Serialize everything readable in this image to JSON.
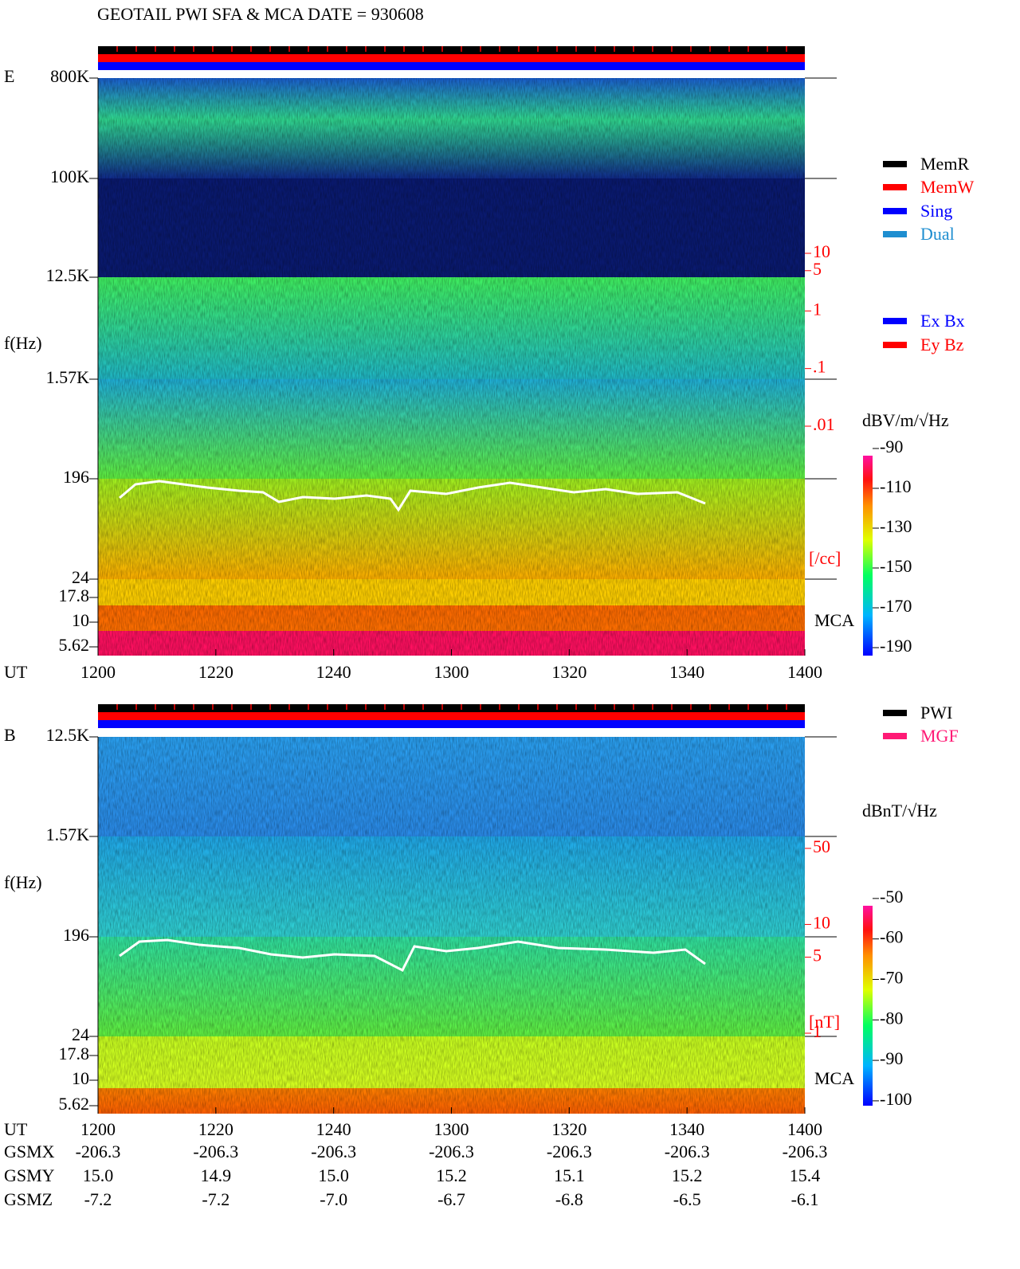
{
  "title": "GEOTAIL  PWI SFA & MCA   DATE = 930608",
  "panels": [
    {
      "component": "E",
      "y_label": "f(Hz)",
      "freq_ticks": [
        "800K",
        "100K",
        "12.5K",
        "1.57K",
        "196",
        "24",
        "17.8",
        "10",
        "5.62"
      ],
      "time_label": "UT",
      "time_ticks": [
        "1200",
        "1220",
        "1240",
        "1300",
        "1320",
        "1340",
        "1400"
      ],
      "density_scale": {
        "ticks": [
          10,
          5,
          1,
          {
            "value": 0.1,
            "label": ".1"
          },
          {
            "value": 0.01,
            "label": ".01"
          }
        ],
        "ylim": [
          0.01,
          10
        ],
        "log": true,
        "unit": "[/cc]",
        "color": "#ff0000"
      },
      "mca_label": "MCA",
      "colorbar": {
        "unit": "dBV/m/√Hz",
        "ticks": [
          -90,
          -110,
          -130,
          -150,
          -170,
          -190
        ],
        "clim": [
          -194,
          -93.6
        ]
      },
      "legend": [
        {
          "name": "MemR",
          "color": "#000000"
        },
        {
          "name": "MemW",
          "color": "#ff0000"
        },
        {
          "name": "Sing",
          "color": "#0000ff"
        },
        {
          "name": "Dual",
          "color": "#1e8ed0"
        }
      ],
      "legend2": [
        {
          "name": "Ex Bx",
          "color": "#0000ff"
        },
        {
          "name": "Ey Bz",
          "color": "#ff0000"
        }
      ]
    },
    {
      "component": "B",
      "y_label": "f(Hz)",
      "freq_ticks": [
        "12.5K",
        "1.57K",
        "196",
        "24",
        "17.8",
        "10",
        "5.62"
      ],
      "time_label": "UT",
      "time_ticks": [
        "1200",
        "1220",
        "1240",
        "1300",
        "1320",
        "1340",
        "1400"
      ],
      "density_scale": {
        "ticks": [
          50,
          10,
          5,
          1
        ],
        "ylim": [
          1,
          50
        ],
        "log": true,
        "unit": "[nT]",
        "color": "#ff0000"
      },
      "mca_label": "MCA",
      "colorbar": {
        "unit": "dBnT/√Hz",
        "ticks": [
          -50,
          -60,
          -70,
          -80,
          -90,
          -100
        ],
        "clim": [
          -101.2,
          -51.8
        ]
      },
      "legend": [
        {
          "name": "PWI",
          "color": "#000000"
        },
        {
          "name": "MGF",
          "color": "#ff1a75"
        }
      ],
      "legend2": []
    }
  ],
  "orbit": {
    "rows": [
      {
        "label": "GSMX",
        "values": [
          "-206.3",
          "-206.3",
          "-206.3",
          "-206.3",
          "-206.3",
          "-206.3",
          "-206.3"
        ]
      },
      {
        "label": "GSMY",
        "values": [
          "15.0",
          "14.9",
          "15.0",
          "15.2",
          "15.1",
          "15.2",
          "15.4"
        ]
      },
      {
        "label": "GSMZ",
        "values": [
          "-7.2",
          "-7.2",
          "-7.0",
          "-6.7",
          "-6.8",
          "-6.5",
          "-6.1"
        ]
      }
    ]
  }
}
